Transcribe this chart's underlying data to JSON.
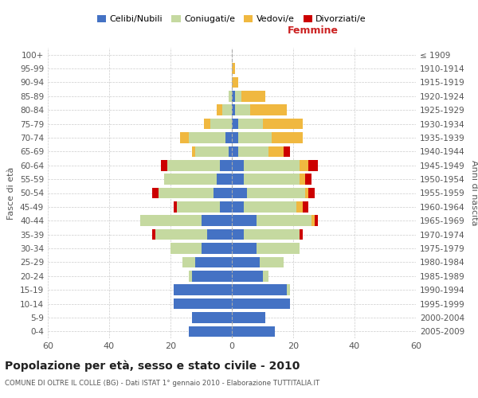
{
  "age_groups": [
    "0-4",
    "5-9",
    "10-14",
    "15-19",
    "20-24",
    "25-29",
    "30-34",
    "35-39",
    "40-44",
    "45-49",
    "50-54",
    "55-59",
    "60-64",
    "65-69",
    "70-74",
    "75-79",
    "80-84",
    "85-89",
    "90-94",
    "95-99",
    "100+"
  ],
  "birth_years": [
    "2005-2009",
    "2000-2004",
    "1995-1999",
    "1990-1994",
    "1985-1989",
    "1980-1984",
    "1975-1979",
    "1970-1974",
    "1965-1969",
    "1960-1964",
    "1955-1959",
    "1950-1954",
    "1945-1949",
    "1940-1944",
    "1935-1939",
    "1930-1934",
    "1925-1929",
    "1920-1924",
    "1915-1919",
    "1910-1914",
    "≤ 1909"
  ],
  "males": {
    "celibi": [
      14,
      13,
      19,
      19,
      13,
      12,
      10,
      8,
      10,
      4,
      6,
      5,
      4,
      1,
      2,
      0,
      0,
      0,
      0,
      0,
      0
    ],
    "coniugati": [
      0,
      0,
      0,
      0,
      1,
      4,
      10,
      17,
      20,
      14,
      18,
      17,
      17,
      11,
      12,
      7,
      3,
      1,
      0,
      0,
      0
    ],
    "vedovi": [
      0,
      0,
      0,
      0,
      0,
      0,
      0,
      0,
      0,
      0,
      0,
      0,
      0,
      1,
      3,
      2,
      2,
      0,
      0,
      0,
      0
    ],
    "divorziati": [
      0,
      0,
      0,
      0,
      0,
      0,
      0,
      1,
      0,
      1,
      2,
      0,
      2,
      0,
      0,
      0,
      0,
      0,
      0,
      0,
      0
    ]
  },
  "females": {
    "nubili": [
      14,
      11,
      19,
      18,
      10,
      9,
      8,
      4,
      8,
      4,
      5,
      4,
      4,
      2,
      2,
      2,
      1,
      1,
      0,
      0,
      0
    ],
    "coniugate": [
      0,
      0,
      0,
      1,
      2,
      8,
      14,
      18,
      18,
      17,
      19,
      18,
      18,
      10,
      11,
      8,
      5,
      2,
      0,
      0,
      0
    ],
    "vedove": [
      0,
      0,
      0,
      0,
      0,
      0,
      0,
      0,
      1,
      2,
      1,
      2,
      3,
      5,
      10,
      13,
      12,
      8,
      2,
      1,
      0
    ],
    "divorziate": [
      0,
      0,
      0,
      0,
      0,
      0,
      0,
      1,
      1,
      2,
      2,
      2,
      3,
      2,
      0,
      0,
      0,
      0,
      0,
      0,
      0
    ]
  },
  "colors": {
    "celibi": "#4472c4",
    "coniugati": "#c5d9a0",
    "vedovi": "#f0b840",
    "divorziati": "#cc0000"
  },
  "title": "Popolazione per età, sesso e stato civile - 2010",
  "subtitle": "COMUNE DI OLTRE IL COLLE (BG) - Dati ISTAT 1° gennaio 2010 - Elaborazione TUTTITALIA.IT",
  "xlabel_right": "Femmine",
  "ylabel_left": "Fasce di età",
  "ylabel_right": "Anni di nascita",
  "xlim": 60,
  "legend_labels": [
    "Celibi/Nubili",
    "Coniugati/e",
    "Vedovi/e",
    "Divorziati/e"
  ],
  "background_color": "#ffffff",
  "grid_color": "#cccccc"
}
